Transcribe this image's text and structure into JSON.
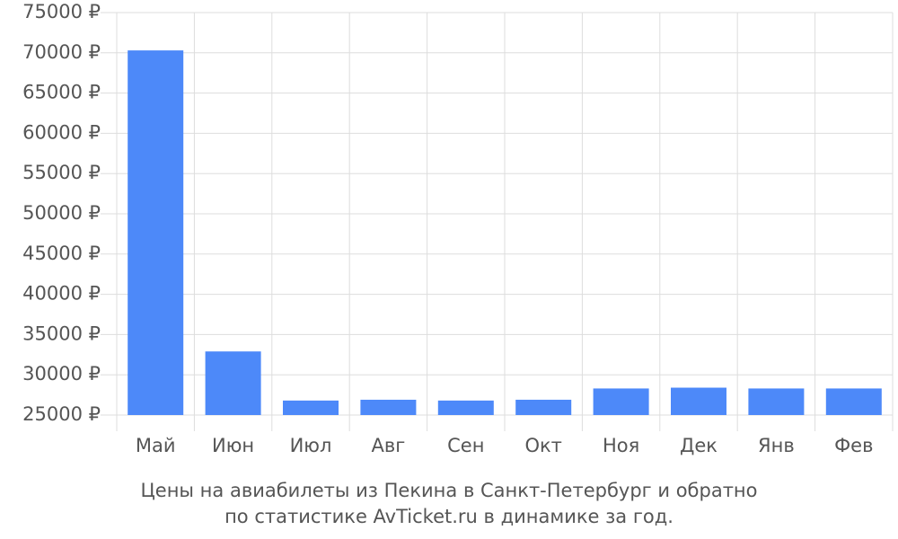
{
  "chart_data": {
    "type": "bar",
    "title": [
      "Цены на авиабилеты из Пекина в Санкт-Петербург и обратно",
      "по статистике AvTicket.ru в динамике за год."
    ],
    "categories": [
      "Май",
      "Июн",
      "Июл",
      "Авг",
      "Сен",
      "Окт",
      "Ноя",
      "Дек",
      "Янв",
      "Фев"
    ],
    "values": [
      70300,
      32900,
      26800,
      26900,
      26800,
      26900,
      28300,
      28400,
      28300,
      28300
    ],
    "color": "#4d89f9",
    "ylim": [
      25000,
      75000
    ],
    "yticks": [
      {
        "value": 25000,
        "label": "25000 ₽"
      },
      {
        "value": 30000,
        "label": "30000 ₽"
      },
      {
        "value": 35000,
        "label": "35000 ₽"
      },
      {
        "value": 40000,
        "label": "40000 ₽"
      },
      {
        "value": 45000,
        "label": "45000 ₽"
      },
      {
        "value": 50000,
        "label": "50000 ₽"
      },
      {
        "value": 55000,
        "label": "55000 ₽"
      },
      {
        "value": 60000,
        "label": "60000 ₽"
      },
      {
        "value": 65000,
        "label": "65000 ₽"
      },
      {
        "value": 70000,
        "label": "70000 ₽"
      },
      {
        "value": 75000,
        "label": "75000 ₽"
      }
    ],
    "grid": true
  }
}
